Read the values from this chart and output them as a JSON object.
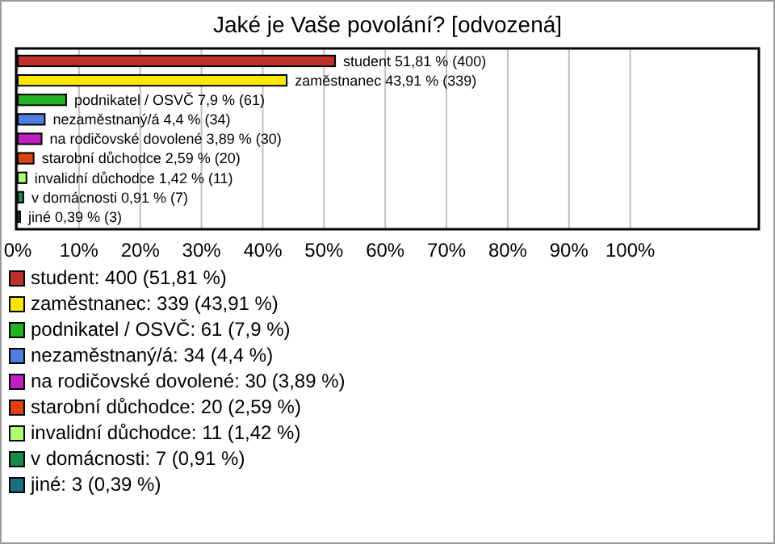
{
  "chart_data": {
    "type": "bar",
    "orientation": "horizontal",
    "title": "Jaké je Vaše povolání? [odvozená]",
    "categories": [
      null,
      null,
      null,
      null,
      null,
      null,
      null,
      null,
      null
    ],
    "xlim": [
      0,
      121
    ],
    "xticks": [
      {
        "value": 0,
        "label": "0%"
      },
      {
        "value": 10,
        "label": "10%"
      },
      {
        "value": 20,
        "label": "20%"
      },
      {
        "value": 30,
        "label": "30%"
      },
      {
        "value": 40,
        "label": "40%"
      },
      {
        "value": 50,
        "label": "50%"
      },
      {
        "value": 60,
        "label": "60%"
      },
      {
        "value": 70,
        "label": "70%"
      },
      {
        "value": 80,
        "label": "80%"
      },
      {
        "value": 90,
        "label": "90%"
      },
      {
        "value": 100,
        "label": "100%"
      }
    ],
    "grid": "x",
    "legend": "bottom",
    "series": [
      {
        "name": "student: 400 (51,81 %)",
        "color": "#c0302a",
        "values": [
          51.81,
          null,
          null,
          null,
          null,
          null,
          null,
          null,
          null
        ],
        "value_labels": [
          "student 51,81 % (400)",
          null,
          null,
          null,
          null,
          null,
          null,
          null,
          null
        ]
      },
      {
        "name": "zaměstnanec: 339 (43,91 %)",
        "color": "#ffe600",
        "values": [
          null,
          43.91,
          null,
          null,
          null,
          null,
          null,
          null,
          null
        ],
        "value_labels": [
          null,
          "zaměstnanec 43,91 % (339)",
          null,
          null,
          null,
          null,
          null,
          null,
          null
        ]
      },
      {
        "name": "podnikatel / OSVČ: 61 (7,9 %)",
        "color": "#22b322",
        "values": [
          null,
          null,
          7.9,
          null,
          null,
          null,
          null,
          null,
          null
        ],
        "value_labels": [
          null,
          null,
          "podnikatel / OSVČ 7,9 % (61)",
          null,
          null,
          null,
          null,
          null,
          null
        ]
      },
      {
        "name": "nezaměstnaný/á: 34 (4,4 %)",
        "color": "#4f7fe0",
        "values": [
          null,
          null,
          null,
          4.4,
          null,
          null,
          null,
          null,
          null
        ],
        "value_labels": [
          null,
          null,
          null,
          "nezaměstnaný/á 4,4 % (34)",
          null,
          null,
          null,
          null,
          null
        ]
      },
      {
        "name": "na rodičovské dovolené: 30 (3,89 %)",
        "color": "#c020c0",
        "values": [
          null,
          null,
          null,
          null,
          3.89,
          null,
          null,
          null,
          null
        ],
        "value_labels": [
          null,
          null,
          null,
          null,
          "na rodičovské dovolené 3,89 % (30)",
          null,
          null,
          null,
          null
        ]
      },
      {
        "name": "starobní důchodce: 20 (2,59 %)",
        "color": "#e04010",
        "values": [
          null,
          null,
          null,
          null,
          null,
          2.59,
          null,
          null,
          null
        ],
        "value_labels": [
          null,
          null,
          null,
          null,
          null,
          "starobní důchodce 2,59 % (20)",
          null,
          null,
          null
        ]
      },
      {
        "name": "invalidní důchodce: 11 (1,42 %)",
        "color": "#b0ff70",
        "values": [
          null,
          null,
          null,
          null,
          null,
          null,
          1.42,
          null,
          null
        ],
        "value_labels": [
          null,
          null,
          null,
          null,
          null,
          null,
          "invalidní důchodce 1,42 % (11)",
          null,
          null
        ]
      },
      {
        "name": "v domácnosti: 7 (0,91 %)",
        "color": "#1a8a4a",
        "values": [
          null,
          null,
          null,
          null,
          null,
          null,
          null,
          0.91,
          null
        ],
        "value_labels": [
          null,
          null,
          null,
          null,
          null,
          null,
          null,
          "v domácnosti 0,91 % (7)",
          null
        ]
      },
      {
        "name": "jiné: 3 (0,39 %)",
        "color": "#1a7080",
        "values": [
          null,
          null,
          null,
          null,
          null,
          null,
          null,
          null,
          0.39
        ],
        "value_labels": [
          null,
          null,
          null,
          null,
          null,
          null,
          null,
          null,
          "jiné 0,39 % (3)"
        ]
      }
    ]
  }
}
